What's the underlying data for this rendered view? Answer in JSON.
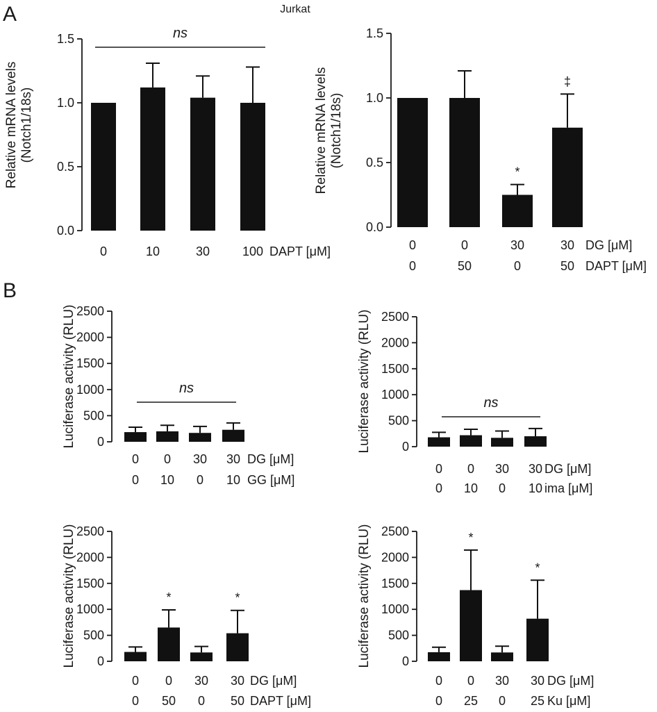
{
  "title": "Jurkat",
  "panel_labels": [
    "A",
    "B"
  ],
  "chart_data": [
    {
      "id": "A1",
      "type": "bar",
      "ylabel_lines": [
        "Relative mRNA levels",
        "(Notch1/18s)"
      ],
      "ylim": [
        0,
        1.5
      ],
      "yticks": [
        "0.0",
        "0.5",
        "1.0",
        "1.5"
      ],
      "ytick_values": [
        0,
        0.5,
        1.0,
        1.5
      ],
      "conditions": [
        {
          "label": "DAPT [μM]",
          "values": [
            "0",
            "10",
            "30",
            "100"
          ]
        }
      ],
      "values": [
        1.0,
        1.12,
        1.04,
        1.0
      ],
      "errors": [
        0,
        0.19,
        0.17,
        0.28
      ],
      "significance": [
        "",
        "",
        "",
        ""
      ],
      "ns_label": "ns"
    },
    {
      "id": "A2",
      "type": "bar",
      "ylabel_lines": [
        "Relative mRNA levels",
        "(Notch1/18s)"
      ],
      "ylim": [
        0,
        1.5
      ],
      "yticks": [
        "0.0",
        "0.5",
        "1.0",
        "1.5"
      ],
      "ytick_values": [
        0,
        0.5,
        1.0,
        1.5
      ],
      "conditions": [
        {
          "label": "DG [μM]",
          "values": [
            "0",
            "0",
            "30",
            "30"
          ]
        },
        {
          "label": "DAPT [μM]",
          "values": [
            "0",
            "50",
            "0",
            "50"
          ]
        }
      ],
      "values": [
        1.0,
        1.0,
        0.25,
        0.77
      ],
      "errors": [
        0,
        0.21,
        0.08,
        0.26
      ],
      "significance": [
        "",
        "",
        "*",
        "‡"
      ],
      "ns_label": ""
    },
    {
      "id": "B1",
      "type": "bar",
      "ylabel_lines": [
        "Luciferase activity (RLU)"
      ],
      "ylim": [
        0,
        2500
      ],
      "yticks": [
        "0",
        "500",
        "1000",
        "1500",
        "2000",
        "2500"
      ],
      "ytick_values": [
        0,
        500,
        1000,
        1500,
        2000,
        2500
      ],
      "conditions": [
        {
          "label": "DG [μM]",
          "values": [
            "0",
            "0",
            "30",
            "30"
          ]
        },
        {
          "label": "GG [μM]",
          "values": [
            "0",
            "10",
            "0",
            "10"
          ]
        }
      ],
      "values": [
        185,
        200,
        170,
        230
      ],
      "errors": [
        95,
        115,
        125,
        130
      ],
      "significance": [
        "",
        "",
        "",
        ""
      ],
      "ns_label": "ns"
    },
    {
      "id": "B2",
      "type": "bar",
      "ylabel_lines": [
        "Luciferase activity (RLU)"
      ],
      "ylim": [
        0,
        2500
      ],
      "yticks": [
        "0",
        "500",
        "1000",
        "1500",
        "2000",
        "2500"
      ],
      "ytick_values": [
        0,
        500,
        1000,
        1500,
        2000,
        2500
      ],
      "conditions": [
        {
          "label": "DG [μM]",
          "values": [
            "0",
            "0",
            "30",
            "30"
          ]
        },
        {
          "label": "ima [μM]",
          "values": [
            "0",
            "10",
            "0",
            "10"
          ]
        }
      ],
      "values": [
        180,
        220,
        170,
        200
      ],
      "errors": [
        95,
        115,
        130,
        150
      ],
      "significance": [
        "",
        "",
        "",
        ""
      ],
      "ns_label": "ns"
    },
    {
      "id": "B3",
      "type": "bar",
      "ylabel_lines": [
        "Luciferase activity (RLU)"
      ],
      "ylim": [
        0,
        2500
      ],
      "yticks": [
        "0",
        "500",
        "1000",
        "1500",
        "2000",
        "2500"
      ],
      "ytick_values": [
        0,
        500,
        1000,
        1500,
        2000,
        2500
      ],
      "conditions": [
        {
          "label": "DG [μM]",
          "values": [
            "0",
            "0",
            "30",
            "30"
          ]
        },
        {
          "label": "DAPT [μM]",
          "values": [
            "0",
            "50",
            "0",
            "50"
          ]
        }
      ],
      "values": [
        180,
        650,
        170,
        540
      ],
      "errors": [
        95,
        340,
        115,
        440
      ],
      "significance": [
        "",
        "*",
        "",
        "*"
      ],
      "ns_label": ""
    },
    {
      "id": "B4",
      "type": "bar",
      "ylabel_lines": [
        "Luciferase activity (RLU)"
      ],
      "ylim": [
        0,
        2500
      ],
      "yticks": [
        "0",
        "500",
        "1000",
        "1500",
        "2000",
        "2500"
      ],
      "ytick_values": [
        0,
        500,
        1000,
        1500,
        2000,
        2500
      ],
      "conditions": [
        {
          "label": "DG [μM]",
          "values": [
            "0",
            "0",
            "30",
            "30"
          ]
        },
        {
          "label": "Ku [μM]",
          "values": [
            "0",
            "25",
            "0",
            "25"
          ]
        }
      ],
      "values": [
        175,
        1370,
        170,
        820
      ],
      "errors": [
        95,
        770,
        120,
        740
      ],
      "significance": [
        "",
        "*",
        "",
        "*"
      ],
      "ns_label": ""
    }
  ]
}
